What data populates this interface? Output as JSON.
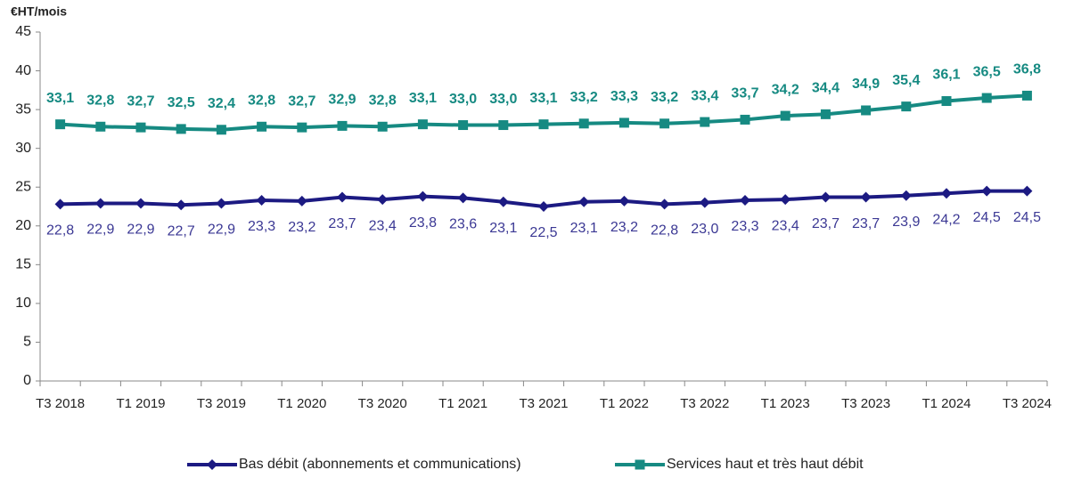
{
  "chart_data": {
    "type": "line",
    "y_axis_label": "€HT/mois",
    "categories": [
      "T3 2018",
      null,
      "T1 2019",
      null,
      "T3 2019",
      null,
      "T1 2020",
      null,
      "T3 2020",
      null,
      "T1 2021",
      null,
      "T3 2021",
      null,
      "T1 2022",
      null,
      "T3 2022",
      null,
      "T1 2023",
      null,
      "T3 2023",
      null,
      "T1 2024",
      null,
      "T3 2024"
    ],
    "ylim": [
      0,
      45
    ],
    "yticks": [
      0,
      5,
      10,
      15,
      20,
      25,
      30,
      35,
      40,
      45
    ],
    "grid": false,
    "legend": "bottom",
    "series": [
      {
        "name": "Bas débit (abonnements et communications)",
        "color": "#1c1a82",
        "marker": "diamond",
        "label_position": "below",
        "values": [
          22.8,
          22.9,
          22.9,
          22.7,
          22.9,
          23.3,
          23.2,
          23.7,
          23.4,
          23.8,
          23.6,
          23.1,
          22.5,
          23.1,
          23.2,
          22.8,
          23.0,
          23.3,
          23.4,
          23.7,
          23.7,
          23.9,
          24.2,
          24.5,
          24.5
        ],
        "value_labels": [
          "22,8",
          "22,9",
          "22,9",
          "22,7",
          "22,9",
          "23,3",
          "23,2",
          "23,7",
          "23,4",
          "23,8",
          "23,6",
          "23,1",
          "22,5",
          "23,1",
          "23,2",
          "22,8",
          "23,0",
          "23,3",
          "23,4",
          "23,7",
          "23,7",
          "23,9",
          "24,2",
          "24,5",
          "24,5"
        ]
      },
      {
        "name": "Services haut et très haut débit",
        "color": "#168a82",
        "marker": "square",
        "label_position": "above",
        "values": [
          33.1,
          32.8,
          32.7,
          32.5,
          32.4,
          32.8,
          32.7,
          32.9,
          32.8,
          33.1,
          33.0,
          33.0,
          33.1,
          33.2,
          33.3,
          33.2,
          33.4,
          33.7,
          34.2,
          34.4,
          34.9,
          35.4,
          36.1,
          36.5,
          36.8
        ],
        "value_labels": [
          "33,1",
          "32,8",
          "32,7",
          "32,5",
          "32,4",
          "32,8",
          "32,7",
          "32,9",
          "32,8",
          "33,1",
          "33,0",
          "33,0",
          "33,1",
          "33,2",
          "33,3",
          "33,2",
          "33,4",
          "33,7",
          "34,2",
          "34,4",
          "34,9",
          "35,4",
          "36,1",
          "36,5",
          "36,8"
        ]
      }
    ]
  }
}
